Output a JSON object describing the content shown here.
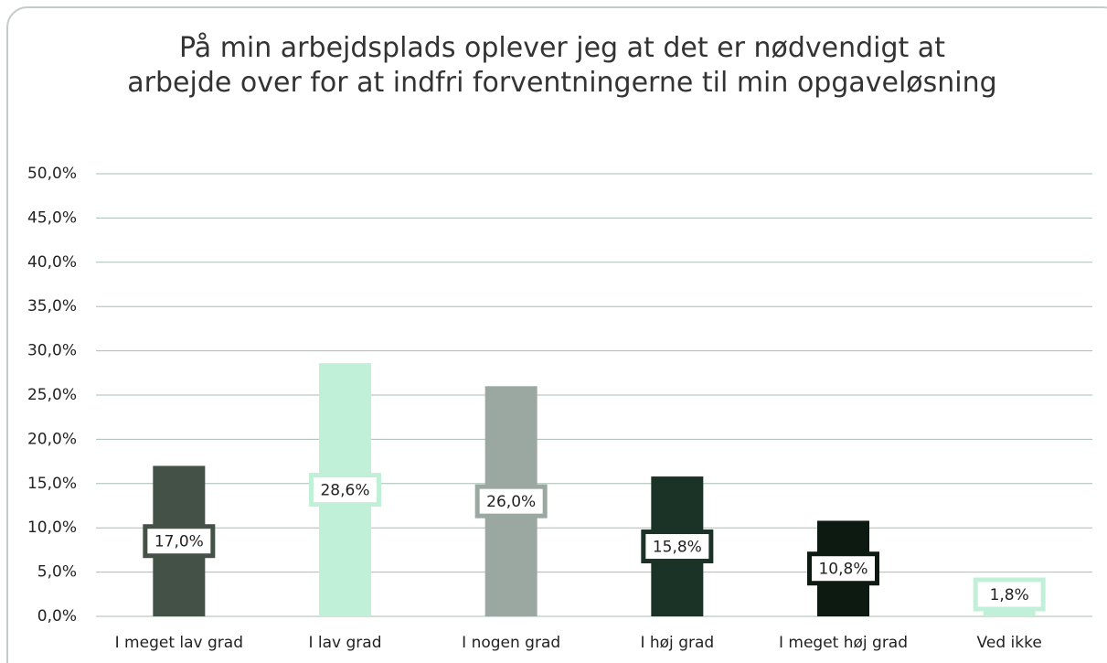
{
  "chart_data": {
    "type": "bar",
    "title": "På min arbejdsplads oplever jeg at det er nødvendigt at arbejde over for at indfri forventningerne til min opgaveløsning",
    "categories": [
      "I meget lav grad",
      "I lav grad",
      "I nogen grad",
      "I høj grad",
      "I meget høj grad",
      "Ved ikke"
    ],
    "values": [
      17.0,
      28.6,
      26.0,
      15.8,
      10.8,
      1.8
    ],
    "value_labels": [
      "17,0%",
      "28,6%",
      "26,0%",
      "15,8%",
      "10,8%",
      "1,8%"
    ],
    "colors": [
      "#435147",
      "#c1f0d8",
      "#9ba8a1",
      "#1a3326",
      "#0d1a12",
      "#c1f0d8"
    ],
    "ylim": [
      0,
      50
    ],
    "yticks": [
      {
        "value": 0,
        "label": "0,0%"
      },
      {
        "value": 5,
        "label": "5,0%"
      },
      {
        "value": 10,
        "label": "10,0%"
      },
      {
        "value": 15,
        "label": "15,0%"
      },
      {
        "value": 20,
        "label": "20,0%"
      },
      {
        "value": 25,
        "label": "25,0%"
      },
      {
        "value": 30,
        "label": "30,0%"
      },
      {
        "value": 35,
        "label": "35,0%"
      },
      {
        "value": 40,
        "label": "40,0%"
      },
      {
        "value": 45,
        "label": "45,0%"
      },
      {
        "value": 50,
        "label": "50,0%"
      }
    ],
    "grid": true
  }
}
